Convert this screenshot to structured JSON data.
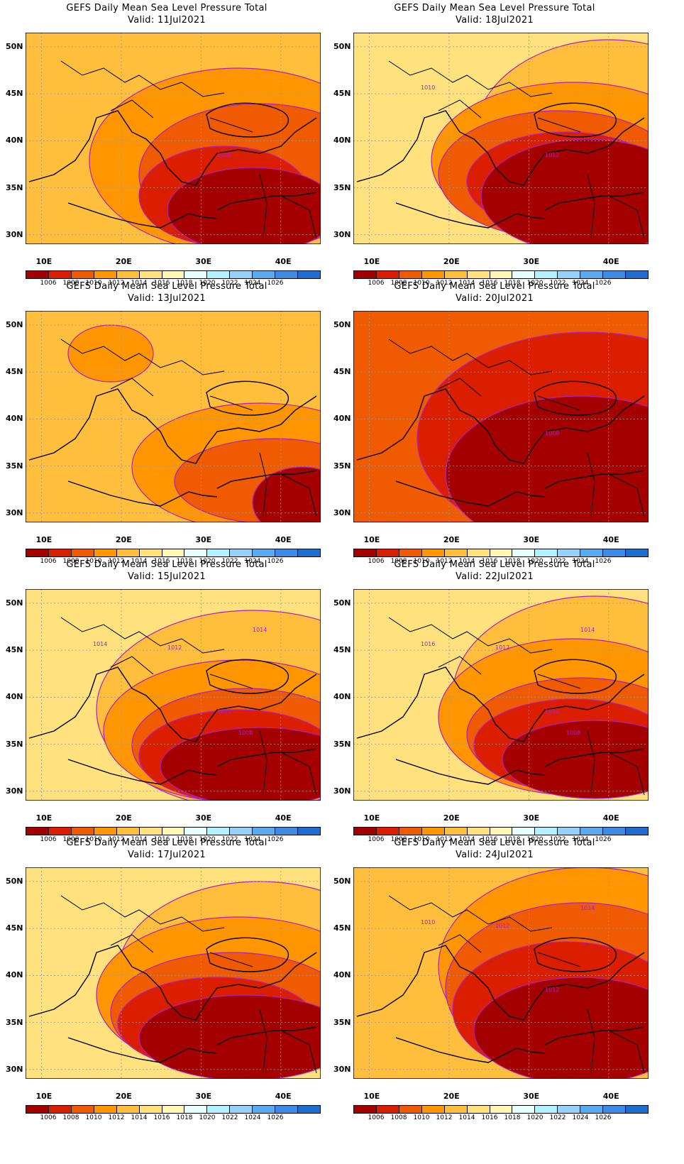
{
  "figure": {
    "panels": [
      {
        "title": "GEFS Daily Mean Sea Level Pressure Total",
        "valid": "Valid:  11Jul2021",
        "contour_labels": [
          "1008"
        ]
      },
      {
        "title": "GEFS Daily Mean Sea Level Pressure Total",
        "valid": "Valid:  18Jul2021",
        "contour_labels": [
          "1012",
          "1010"
        ]
      },
      {
        "title": "GEFS Daily Mean Sea Level Pressure Total",
        "valid": "Valid:  13Jul2021",
        "contour_labels": []
      },
      {
        "title": "GEFS Daily Mean Sea Level Pressure Total",
        "valid": "Valid:  20Jul2021",
        "contour_labels": [
          "1008"
        ]
      },
      {
        "title": "GEFS Daily Mean Sea Level Pressure Total",
        "valid": "Valid:  15Jul2021",
        "contour_labels": [
          "1012",
          "1014",
          "1014",
          "1012",
          "1008"
        ]
      },
      {
        "title": "GEFS Daily Mean Sea Level Pressure Total",
        "valid": "Valid:  22Jul2021",
        "contour_labels": [
          "1016",
          "1016",
          "1014",
          "1012",
          "1008"
        ]
      },
      {
        "title": "GEFS Daily Mean Sea Level Pressure Total",
        "valid": "Valid:  17Jul2021",
        "contour_labels": []
      },
      {
        "title": "GEFS Daily Mean Sea Level Pressure Total",
        "valid": "Valid:  24Jul2021",
        "contour_labels": [
          "1012",
          "1010",
          "1014",
          "1012"
        ]
      }
    ],
    "lat_labels": [
      "50N",
      "45N",
      "40N",
      "35N",
      "30N"
    ],
    "lon_labels": [
      "10E",
      "20E",
      "30E",
      "40E"
    ],
    "colorbar_ticks": [
      "1006",
      "1008",
      "1010",
      "1012",
      "1014",
      "1016",
      "1018",
      "1020",
      "1022",
      "1024",
      "1026"
    ],
    "colorbar_colors": [
      "#a50000",
      "#dc1e00",
      "#f05a00",
      "#ff9600",
      "#ffbe3c",
      "#ffe17d",
      "#fff5b4",
      "#e6ffff",
      "#b4f0ff",
      "#96d2fa",
      "#5aaaf0",
      "#3c8ce6",
      "#1e6ed2"
    ]
  }
}
